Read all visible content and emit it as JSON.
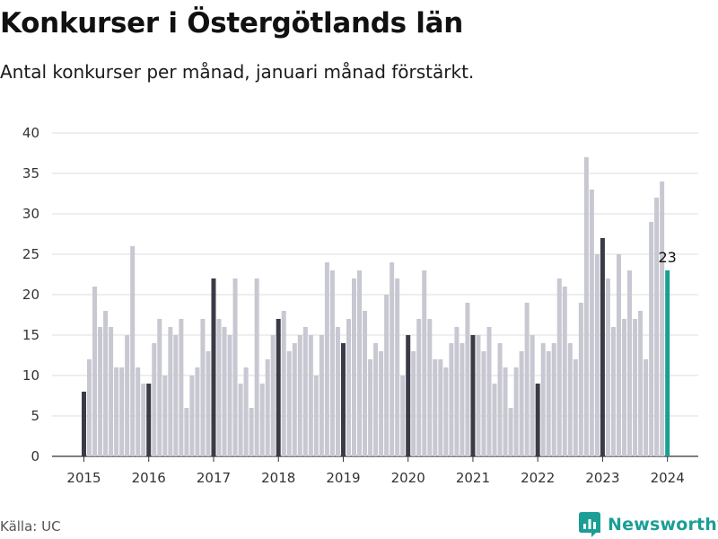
{
  "header": {
    "title": "Konkurser i Östergötlands län",
    "subtitle": "Antal konkurser per månad, januari månad förstärkt."
  },
  "footer": {
    "source": "Källa: UC",
    "brand": "Newsworthy"
  },
  "colors": {
    "bar": "#c8c8d2",
    "january": "#3b3b48",
    "latest": "#1b9e95",
    "grid": "#dcdcdc",
    "brand": "#1b9e95"
  },
  "chart_data": {
    "type": "bar",
    "title": "Konkurser i Östergötlands län",
    "subtitle": "Antal konkurser per månad, januari månad förstärkt.",
    "x_tick_labels": [
      "2015",
      "2016",
      "2017",
      "2018",
      "2019",
      "2020",
      "2021",
      "2022",
      "2023",
      "2024"
    ],
    "y_ticks": [
      0,
      5,
      10,
      15,
      20,
      25,
      30,
      35,
      40
    ],
    "ylim": [
      0,
      40
    ],
    "grid": true,
    "highlight": "January bars darker; latest month (Jan 2024) highlighted and labelled",
    "annotation": {
      "month": "2024-01",
      "text": "23"
    },
    "series": [
      {
        "start_month": "2015-01",
        "end_month": "2024-01",
        "values": [
          8,
          12,
          21,
          16,
          18,
          16,
          11,
          11,
          15,
          26,
          11,
          9,
          9,
          14,
          17,
          10,
          16,
          15,
          17,
          6,
          10,
          11,
          17,
          13,
          22,
          17,
          16,
          15,
          22,
          9,
          11,
          6,
          22,
          9,
          12,
          15,
          17,
          18,
          13,
          14,
          15,
          16,
          15,
          10,
          15,
          24,
          23,
          16,
          14,
          17,
          22,
          23,
          18,
          12,
          14,
          13,
          20,
          24,
          22,
          10,
          15,
          13,
          17,
          23,
          17,
          12,
          12,
          11,
          14,
          16,
          14,
          19,
          15,
          15,
          13,
          16,
          9,
          14,
          11,
          6,
          11,
          13,
          19,
          15,
          9,
          14,
          13,
          14,
          22,
          21,
          14,
          12,
          19,
          37,
          33,
          25,
          27,
          22,
          16,
          25,
          17,
          23,
          17,
          18,
          12,
          29,
          32,
          34,
          23
        ]
      }
    ]
  }
}
